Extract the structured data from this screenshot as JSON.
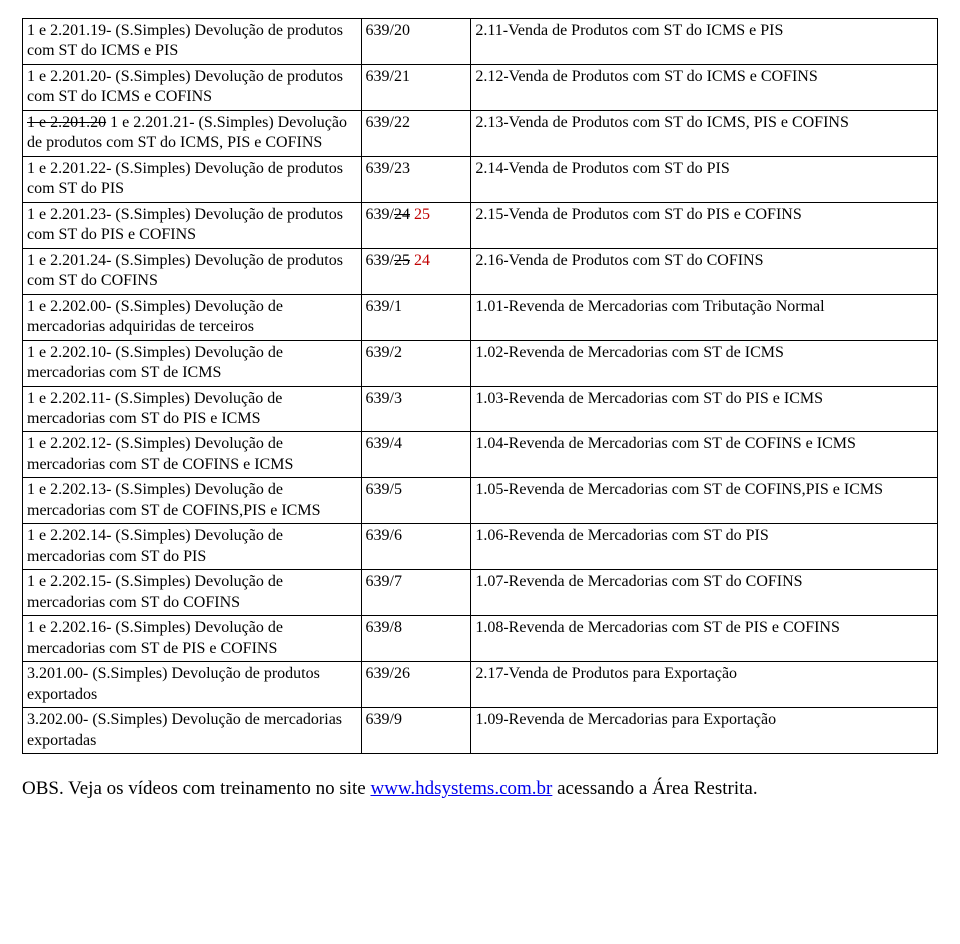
{
  "rows": [
    {
      "c1": [
        {
          "t": "1 e 2.201.19- (S.Simples) Devolução de produtos com ST do ICMS e PIS"
        }
      ],
      "c2": [
        {
          "t": "639/20"
        }
      ],
      "c3": [
        {
          "t": "2.11-Venda de Produtos com ST do ICMS e PIS"
        }
      ]
    },
    {
      "c1": [
        {
          "t": "1 e 2.201.20- (S.Simples) Devolução de produtos com ST do ICMS e COFINS"
        }
      ],
      "c2": [
        {
          "t": "639/21"
        }
      ],
      "c3": [
        {
          "t": "2.12-Venda de Produtos com ST do ICMS e COFINS"
        }
      ]
    },
    {
      "c1": [
        {
          "t": "1 e 2.201.20",
          "st": true
        },
        {
          "t": " 1 e 2.201.21- (S.Simples) Devolução de produtos com ST do ICMS, PIS e COFINS"
        }
      ],
      "c2": [
        {
          "t": "639/22"
        }
      ],
      "c3": [
        {
          "t": "2.13-Venda de Produtos com ST do ICMS, PIS e COFINS"
        }
      ]
    },
    {
      "c1": [
        {
          "t": "1 e 2.201.22- (S.Simples) Devolução de produtos com ST do PIS"
        }
      ],
      "c2": [
        {
          "t": "639/23"
        }
      ],
      "c3": [
        {
          "t": "2.14-Venda de Produtos com ST do PIS"
        }
      ]
    },
    {
      "c1": [
        {
          "t": "1 e 2.201.23- (S.Simples) Devolução de produtos com ST do PIS e COFINS"
        }
      ],
      "c2": [
        {
          "t": "639/"
        },
        {
          "t": "24",
          "st": true
        },
        {
          "t": " "
        },
        {
          "t": "25",
          "red": true
        }
      ],
      "c3": [
        {
          "t": "2.15-Venda de Produtos com ST do PIS e COFINS"
        }
      ]
    },
    {
      "c1": [
        {
          "t": "1 e 2.201.24- (S.Simples) Devolução de produtos com ST do COFINS"
        }
      ],
      "c2": [
        {
          "t": "639/"
        },
        {
          "t": "25",
          "st": true
        },
        {
          "t": " "
        },
        {
          "t": "24",
          "red": true
        }
      ],
      "c3": [
        {
          "t": "2.16-Venda de Produtos com ST do COFINS"
        }
      ]
    },
    {
      "c1": [
        {
          "t": "1 e 2.202.00- (S.Simples) Devolução de mercadorias adquiridas de terceiros"
        }
      ],
      "c2": [
        {
          "t": "639/1"
        }
      ],
      "c3": [
        {
          "t": "1.01-Revenda de Mercadorias com Tributação Normal"
        }
      ]
    },
    {
      "c1": [
        {
          "t": "1 e 2.202.10- (S.Simples) Devolução de mercadorias com ST de ICMS"
        }
      ],
      "c2": [
        {
          "t": "639/2"
        }
      ],
      "c3": [
        {
          "t": "1.02-Revenda de Mercadorias com ST de ICMS"
        }
      ]
    },
    {
      "c1": [
        {
          "t": "1 e 2.202.11- (S.Simples) Devolução de mercadorias com ST do PIS e ICMS"
        }
      ],
      "c2": [
        {
          "t": "639/3"
        }
      ],
      "c3": [
        {
          "t": "1.03-Revenda de Mercadorias com ST do PIS e ICMS"
        }
      ]
    },
    {
      "c1": [
        {
          "t": "1 e 2.202.12- (S.Simples) Devolução de mercadorias com ST de COFINS e ICMS"
        }
      ],
      "c2": [
        {
          "t": "639/4"
        }
      ],
      "c3": [
        {
          "t": "1.04-Revenda de Mercadorias com ST de COFINS e ICMS"
        }
      ]
    },
    {
      "c1": [
        {
          "t": "1 e 2.202.13- (S.Simples) Devolução de mercadorias com ST de COFINS,PIS e ICMS"
        }
      ],
      "c2": [
        {
          "t": "639/5"
        }
      ],
      "c3": [
        {
          "t": "1.05-Revenda de Mercadorias com ST de COFINS,PIS e ICMS"
        }
      ]
    },
    {
      "c1": [
        {
          "t": "1 e 2.202.14- (S.Simples) Devolução de mercadorias com ST do PIS"
        }
      ],
      "c2": [
        {
          "t": "639/6"
        }
      ],
      "c3": [
        {
          "t": "1.06-Revenda de Mercadorias com ST do PIS"
        }
      ]
    },
    {
      "c1": [
        {
          "t": "1 e 2.202.15- (S.Simples) Devolução de mercadorias com ST do COFINS"
        }
      ],
      "c2": [
        {
          "t": "639/7"
        }
      ],
      "c3": [
        {
          "t": "1.07-Revenda de Mercadorias com ST do COFINS"
        }
      ]
    },
    {
      "c1": [
        {
          "t": "1 e 2.202.16- (S.Simples) Devolução de mercadorias com ST de PIS e COFINS"
        }
      ],
      "c2": [
        {
          "t": "639/8"
        }
      ],
      "c3": [
        {
          "t": "1.08-Revenda de Mercadorias com ST de PIS e COFINS"
        }
      ]
    },
    {
      "c1": [
        {
          "t": "3.201.00- (S.Simples) Devolução de produtos exportados"
        }
      ],
      "c2": [
        {
          "t": "639/26"
        }
      ],
      "c3": [
        {
          "t": "2.17-Venda de Produtos para Exportação"
        }
      ]
    },
    {
      "c1": [
        {
          "t": "3.202.00- (S.Simples) Devolução de mercadorias exportadas"
        }
      ],
      "c2": [
        {
          "t": "639/9"
        }
      ],
      "c3": [
        {
          "t": "1.09-Revenda de Mercadorias para Exportação"
        }
      ]
    }
  ],
  "obs": {
    "prefix": "OBS. Veja os vídeos com treinamento no site ",
    "link_text": "www.hdsystems.com.br",
    "suffix": " acessando a Área Restrita."
  }
}
